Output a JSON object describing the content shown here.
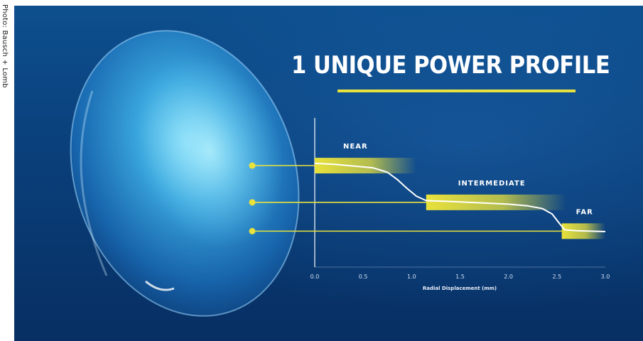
{
  "photo_credit": "Photo: Bausch + Lomb",
  "colors": {
    "accent": "#e9e23c",
    "background": "#0a3f7a",
    "curve": "#ffffff"
  },
  "chart_data": {
    "type": "line",
    "title": "1 UNIQUE POWER PROFILE",
    "xlabel": "Radial Displacement (mm)",
    "ylabel": "",
    "xlim": [
      0,
      3.0
    ],
    "x_ticks": [
      "0.0",
      "0.5",
      "1.0",
      "1.5",
      "2.0",
      "2.5",
      "3.0"
    ],
    "zones": [
      {
        "label": "NEAR",
        "x_start": 0.0,
        "x_end": 0.9
      },
      {
        "label": "INTERMEDIATE",
        "x_start": 1.15,
        "x_end": 2.45
      },
      {
        "label": "FAR",
        "x_start": 2.55,
        "x_end": 3.0
      }
    ],
    "series": [
      {
        "x": [
          0.0,
          0.2,
          0.4,
          0.6,
          0.75,
          0.85,
          0.95,
          1.05,
          1.15,
          1.4,
          1.7,
          2.0,
          2.2,
          2.35,
          2.45,
          2.52,
          2.58,
          2.7,
          3.0
        ],
        "y": [
          1.0,
          0.99,
          0.97,
          0.95,
          0.9,
          0.82,
          0.72,
          0.63,
          0.58,
          0.57,
          0.555,
          0.54,
          0.52,
          0.49,
          0.43,
          0.33,
          0.25,
          0.24,
          0.23
        ]
      }
    ]
  }
}
